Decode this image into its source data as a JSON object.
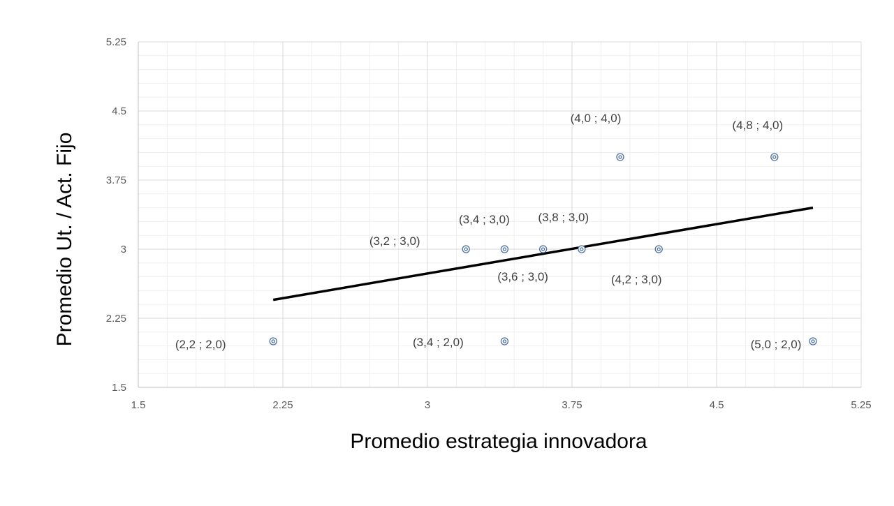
{
  "chart_data": {
    "type": "scatter",
    "title": "",
    "xlabel": "Promedio estrategia innovadora",
    "ylabel": "Promedio Ut. / Act. Fijo",
    "xlim": [
      1.5,
      5.25
    ],
    "ylim": [
      1.5,
      5.25
    ],
    "x_ticks": [
      "1.5",
      "2.25",
      "3",
      "3.75",
      "4.5",
      "5.25"
    ],
    "y_ticks": [
      "1.5",
      "2.25",
      "3",
      "3.75",
      "4.5",
      "5.25"
    ],
    "x_tick_values": [
      1.5,
      2.25,
      3,
      3.75,
      4.5,
      5.25
    ],
    "y_tick_values": [
      1.5,
      2.25,
      3,
      3.75,
      4.5,
      5.25
    ],
    "grid": true,
    "legend": "none",
    "points": [
      {
        "x": 2.2,
        "y": 2.0,
        "label": "(2,2 ; 2,0)"
      },
      {
        "x": 3.2,
        "y": 3.0,
        "label": "(3,2 ; 3,0)"
      },
      {
        "x": 3.4,
        "y": 3.0,
        "label": "(3,4 ; 3,0)"
      },
      {
        "x": 3.4,
        "y": 2.0,
        "label": "(3,4 ; 2,0)"
      },
      {
        "x": 3.6,
        "y": 3.0,
        "label": "(3,6 ; 3,0)"
      },
      {
        "x": 3.8,
        "y": 3.0,
        "label": "(3,8 ; 3,0)"
      },
      {
        "x": 4.0,
        "y": 4.0,
        "label": "(4,0 ; 4,0)"
      },
      {
        "x": 4.2,
        "y": 3.0,
        "label": "(4,2 ; 3,0)"
      },
      {
        "x": 4.8,
        "y": 4.0,
        "label": "(4,8 ; 4,0)"
      },
      {
        "x": 5.0,
        "y": 2.0,
        "label": "(5,0 ; 2,0)"
      }
    ],
    "trendline": {
      "type": "linear",
      "x": [
        2.2,
        5.0
      ],
      "y": [
        2.45,
        3.45
      ]
    },
    "colors": {
      "marker": "#4a6fa5",
      "trendline": "#000000",
      "grid_major": "#d9d9d9",
      "grid_minor": "#efefef"
    }
  }
}
